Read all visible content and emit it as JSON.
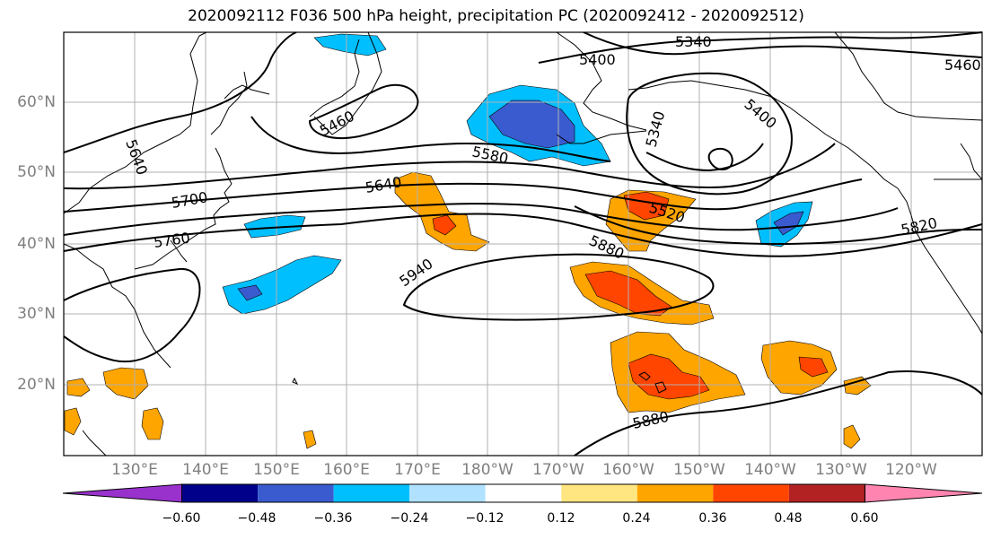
{
  "title": "2020092112 F036 500 hPa height, precipitation PC (2020092412 - 2020092512)",
  "lat_labels": [
    "60°N",
    "50°N",
    "40°N",
    "30°N",
    "20°N"
  ],
  "lon_labels": [
    "130°E",
    "140°E",
    "150°E",
    "160°E",
    "170°E",
    "180°W",
    "170°W",
    "160°W",
    "150°W",
    "140°W",
    "130°W",
    "120°W"
  ],
  "colorbar": {
    "tick_labels": [
      "−0.60",
      "−0.48",
      "−0.36",
      "−0.24",
      "−0.12",
      "0.12",
      "0.24",
      "0.36",
      "0.48",
      "0.60"
    ],
    "colors": [
      "#9932cc",
      "#00008b",
      "#3a5bcf",
      "#00bfff",
      "#b0e2ff",
      "#ffffff",
      "#ffe680",
      "#ffa500",
      "#ff4500",
      "#b22222",
      "#ff85b0"
    ]
  },
  "contour_labels": [
    "5340",
    "5400",
    "5460",
    "5460",
    "5640",
    "5700",
    "5760",
    "5580",
    "5640",
    "5940",
    "5880",
    "5520",
    "5340",
    "5400",
    "5820",
    "5880"
  ],
  "map_style": {
    "coastline_color": "#000000",
    "grid_color": "#b0b0b0",
    "contour_color": "#000000"
  }
}
